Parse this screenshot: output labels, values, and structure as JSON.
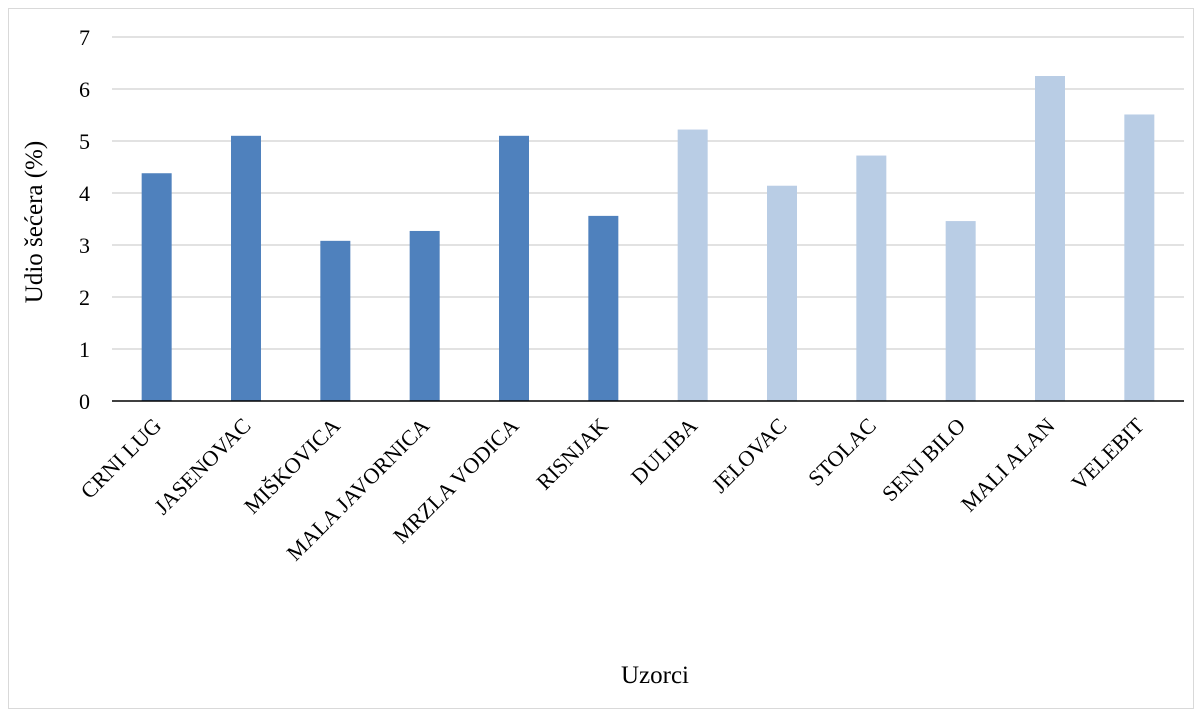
{
  "chart_data": {
    "type": "bar",
    "title": "",
    "xlabel": "Uzorci",
    "ylabel": "Udio šećera (%)",
    "ylim": [
      0,
      7
    ],
    "yticks": [
      0,
      1,
      2,
      3,
      4,
      5,
      6,
      7
    ],
    "grid": true,
    "categories": [
      "CRNI LUG",
      "JASENOVAC",
      "MIŠKOVICA",
      "MALA JAVORNICA",
      "MRZLA VODICA",
      "RISNJAK",
      "DULIBA",
      "JELOVAC",
      "STOLAC",
      "SENJ BILO",
      "MALI ALAN",
      "VELEBIT"
    ],
    "values": [
      4.38,
      5.1,
      3.08,
      3.27,
      5.1,
      3.56,
      5.22,
      4.14,
      4.72,
      3.46,
      6.25,
      5.51
    ],
    "bar_colors": [
      "#4f81bd",
      "#4f81bd",
      "#4f81bd",
      "#4f81bd",
      "#4f81bd",
      "#4f81bd",
      "#b9cde5",
      "#b9cde5",
      "#b9cde5",
      "#b9cde5",
      "#b9cde5",
      "#b9cde5"
    ],
    "grid_color": "#d9d9d9",
    "axis_color": "#000000"
  }
}
